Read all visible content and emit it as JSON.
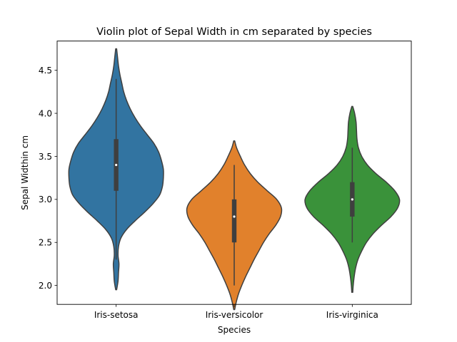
{
  "chart_data": {
    "type": "violin",
    "title": "Violin plot of Sepal Width in cm separated by species",
    "xlabel": "Species",
    "ylabel": "Sepal Widthin cm",
    "categories": [
      "Iris-setosa",
      "Iris-versicolor",
      "Iris-virginica"
    ],
    "ylim": [
      1.78,
      4.84
    ],
    "yticks": [
      2.0,
      2.5,
      3.0,
      3.5,
      4.0,
      4.5
    ],
    "ytick_labels": [
      "2.0",
      "2.5",
      "3.0",
      "3.5",
      "4.0",
      "4.5"
    ],
    "grid": false,
    "series": [
      {
        "category": "Iris-setosa",
        "color": "#3274a1",
        "box": {
          "min": 2.3,
          "q1": 3.1,
          "median": 3.4,
          "q3": 3.7,
          "max": 4.4
        },
        "kde_range": [
          1.95,
          4.75
        ],
        "density": [
          [
            1.95,
            0.01
          ],
          [
            2.05,
            0.04
          ],
          [
            2.15,
            0.05
          ],
          [
            2.25,
            0.06
          ],
          [
            2.35,
            0.04
          ],
          [
            2.45,
            0.05
          ],
          [
            2.55,
            0.1
          ],
          [
            2.65,
            0.22
          ],
          [
            2.75,
            0.4
          ],
          [
            2.85,
            0.6
          ],
          [
            2.95,
            0.78
          ],
          [
            3.05,
            0.92
          ],
          [
            3.15,
            0.98
          ],
          [
            3.25,
            1.0
          ],
          [
            3.35,
            1.0
          ],
          [
            3.45,
            0.96
          ],
          [
            3.55,
            0.9
          ],
          [
            3.65,
            0.8
          ],
          [
            3.75,
            0.66
          ],
          [
            3.85,
            0.52
          ],
          [
            3.95,
            0.4
          ],
          [
            4.05,
            0.3
          ],
          [
            4.15,
            0.22
          ],
          [
            4.25,
            0.16
          ],
          [
            4.35,
            0.12
          ],
          [
            4.45,
            0.08
          ],
          [
            4.55,
            0.05
          ],
          [
            4.65,
            0.03
          ],
          [
            4.75,
            0.01
          ]
        ]
      },
      {
        "category": "Iris-versicolor",
        "color": "#e1812c",
        "box": {
          "min": 2.0,
          "q1": 2.5,
          "median": 2.8,
          "q3": 3.0,
          "max": 3.4
        },
        "kde_range": [
          1.72,
          3.68
        ],
        "density": [
          [
            1.72,
            0.01
          ],
          [
            1.8,
            0.04
          ],
          [
            1.9,
            0.09
          ],
          [
            2.0,
            0.16
          ],
          [
            2.1,
            0.24
          ],
          [
            2.2,
            0.33
          ],
          [
            2.3,
            0.42
          ],
          [
            2.4,
            0.52
          ],
          [
            2.5,
            0.62
          ],
          [
            2.6,
            0.74
          ],
          [
            2.7,
            0.88
          ],
          [
            2.8,
            0.98
          ],
          [
            2.9,
            1.0
          ],
          [
            3.0,
            0.9
          ],
          [
            3.1,
            0.7
          ],
          [
            3.2,
            0.5
          ],
          [
            3.3,
            0.34
          ],
          [
            3.4,
            0.22
          ],
          [
            3.5,
            0.13
          ],
          [
            3.6,
            0.05
          ],
          [
            3.68,
            0.01
          ]
        ]
      },
      {
        "category": "Iris-virginica",
        "color": "#3a923a",
        "box": {
          "min": 2.5,
          "q1": 2.8,
          "median": 3.0,
          "q3": 3.2,
          "max": 3.6
        },
        "kde_range": [
          1.92,
          4.08
        ],
        "density": [
          [
            1.92,
            0.01
          ],
          [
            2.0,
            0.02
          ],
          [
            2.1,
            0.04
          ],
          [
            2.2,
            0.07
          ],
          [
            2.3,
            0.12
          ],
          [
            2.4,
            0.2
          ],
          [
            2.5,
            0.3
          ],
          [
            2.6,
            0.44
          ],
          [
            2.7,
            0.62
          ],
          [
            2.8,
            0.82
          ],
          [
            2.9,
            0.96
          ],
          [
            3.0,
            1.0
          ],
          [
            3.1,
            0.9
          ],
          [
            3.2,
            0.72
          ],
          [
            3.3,
            0.5
          ],
          [
            3.4,
            0.32
          ],
          [
            3.5,
            0.2
          ],
          [
            3.6,
            0.13
          ],
          [
            3.7,
            0.1
          ],
          [
            3.8,
            0.09
          ],
          [
            3.9,
            0.08
          ],
          [
            4.0,
            0.05
          ],
          [
            4.08,
            0.01
          ]
        ]
      }
    ]
  }
}
